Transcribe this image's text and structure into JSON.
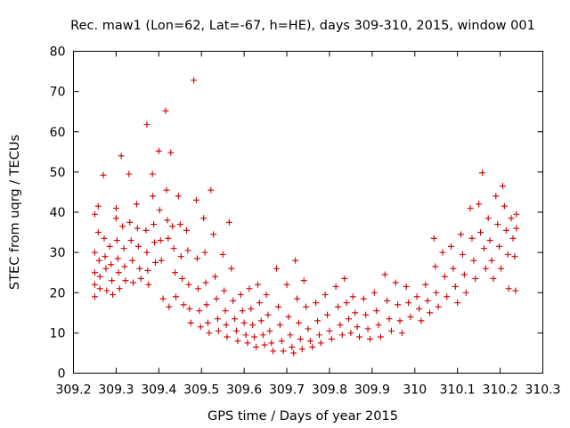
{
  "chart_data": {
    "type": "scatter",
    "title": "Rec. maw1 (Lon=62, Lat=-67, h=HE), days 309-310, 2015, window 001",
    "xlabel": "GPS time / Days of year 2015",
    "ylabel": "STEC from uqrg / TECUs",
    "xlim": [
      309.2,
      310.3
    ],
    "ylim": [
      0,
      80
    ],
    "xticks": [
      309.2,
      309.3,
      309.4,
      309.5,
      309.6,
      309.7,
      309.8,
      309.9,
      310.0,
      310.1,
      310.2,
      310.3
    ],
    "xtick_labels": [
      "309.2",
      "309.3",
      "309.4",
      "309.5",
      "309.6",
      "309.7",
      "309.8",
      "309.9",
      "310",
      "310.1",
      "310.2",
      "310.3"
    ],
    "yticks": [
      0,
      10,
      20,
      30,
      40,
      50,
      60,
      70,
      80
    ],
    "ytick_labels": [
      "0",
      "10",
      "20",
      "30",
      "40",
      "50",
      "60",
      "70",
      "80"
    ],
    "grid": false,
    "legend": false,
    "marker": "+",
    "marker_color": "#cc0000",
    "series": [
      {
        "points": [
          [
            309.25,
            39.5
          ],
          [
            309.25,
            30.0
          ],
          [
            309.25,
            25.0
          ],
          [
            309.25,
            22.0
          ],
          [
            309.25,
            19.0
          ],
          [
            309.258,
            41.5
          ],
          [
            309.258,
            35.0
          ],
          [
            309.26,
            28.0
          ],
          [
            309.262,
            24.0
          ],
          [
            309.262,
            21.0
          ],
          [
            309.27,
            49.2
          ],
          [
            309.272,
            33.5
          ],
          [
            309.274,
            29.0
          ],
          [
            309.276,
            26.0
          ],
          [
            309.278,
            20.5
          ],
          [
            309.285,
            31.5
          ],
          [
            309.288,
            27.0
          ],
          [
            309.29,
            23.0
          ],
          [
            309.292,
            19.5
          ],
          [
            309.3,
            41.0
          ],
          [
            309.3,
            38.5
          ],
          [
            309.302,
            33.0
          ],
          [
            309.304,
            28.5
          ],
          [
            309.306,
            25.0
          ],
          [
            309.308,
            21.0
          ],
          [
            309.312,
            54.0
          ],
          [
            309.315,
            36.5
          ],
          [
            309.318,
            31.0
          ],
          [
            309.32,
            26.5
          ],
          [
            309.322,
            23.0
          ],
          [
            309.33,
            49.5
          ],
          [
            309.332,
            37.5
          ],
          [
            309.335,
            33.0
          ],
          [
            309.338,
            28.0
          ],
          [
            309.34,
            22.5
          ],
          [
            309.348,
            42.0
          ],
          [
            309.35,
            36.0
          ],
          [
            309.352,
            31.5
          ],
          [
            309.355,
            26.0
          ],
          [
            309.358,
            23.5
          ],
          [
            309.372,
            61.8
          ],
          [
            309.37,
            35.5
          ],
          [
            309.372,
            30.0
          ],
          [
            309.374,
            25.5
          ],
          [
            309.376,
            22.0
          ],
          [
            309.385,
            49.5
          ],
          [
            309.386,
            44.0
          ],
          [
            309.388,
            37.0
          ],
          [
            309.39,
            32.5
          ],
          [
            309.392,
            27.5
          ],
          [
            309.4,
            55.2
          ],
          [
            309.402,
            40.5
          ],
          [
            309.404,
            33.0
          ],
          [
            309.406,
            28.0
          ],
          [
            309.41,
            18.5
          ],
          [
            309.416,
            65.2
          ],
          [
            309.418,
            45.5
          ],
          [
            309.42,
            38.0
          ],
          [
            309.422,
            33.5
          ],
          [
            309.424,
            16.5
          ],
          [
            309.428,
            54.8
          ],
          [
            309.432,
            36.5
          ],
          [
            309.435,
            31.0
          ],
          [
            309.438,
            25.0
          ],
          [
            309.44,
            19.0
          ],
          [
            309.446,
            44.0
          ],
          [
            309.45,
            37.0
          ],
          [
            309.452,
            29.0
          ],
          [
            309.455,
            23.5
          ],
          [
            309.458,
            17.0
          ],
          [
            309.465,
            35.5
          ],
          [
            309.468,
            30.5
          ],
          [
            309.47,
            22.0
          ],
          [
            309.472,
            16.0
          ],
          [
            309.475,
            12.5
          ],
          [
            309.482,
            72.8
          ],
          [
            309.488,
            43.0
          ],
          [
            309.49,
            28.5
          ],
          [
            309.492,
            21.0
          ],
          [
            309.495,
            15.5
          ],
          [
            309.498,
            11.5
          ],
          [
            309.505,
            38.5
          ],
          [
            309.508,
            30.0
          ],
          [
            309.51,
            22.5
          ],
          [
            309.512,
            17.0
          ],
          [
            309.515,
            12.5
          ],
          [
            309.518,
            10.0
          ],
          [
            309.522,
            45.5
          ],
          [
            309.528,
            34.5
          ],
          [
            309.532,
            24.0
          ],
          [
            309.535,
            18.5
          ],
          [
            309.538,
            13.5
          ],
          [
            309.54,
            10.5
          ],
          [
            309.55,
            29.5
          ],
          [
            309.553,
            20.5
          ],
          [
            309.556,
            15.5
          ],
          [
            309.558,
            12.0
          ],
          [
            309.56,
            9.0
          ],
          [
            309.565,
            37.5
          ],
          [
            309.57,
            26.0
          ],
          [
            309.574,
            18.0
          ],
          [
            309.578,
            13.5
          ],
          [
            309.582,
            10.5
          ],
          [
            309.585,
            8.0
          ],
          [
            309.592,
            19.5
          ],
          [
            309.596,
            15.5
          ],
          [
            309.6,
            12.5
          ],
          [
            309.604,
            9.5
          ],
          [
            309.608,
            7.5
          ],
          [
            309.612,
            21.0
          ],
          [
            309.616,
            16.0
          ],
          [
            309.62,
            12.0
          ],
          [
            309.624,
            9.0
          ],
          [
            309.628,
            6.5
          ],
          [
            309.632,
            22.0
          ],
          [
            309.636,
            17.5
          ],
          [
            309.64,
            13.0
          ],
          [
            309.644,
            9.5
          ],
          [
            309.648,
            7.0
          ],
          [
            309.652,
            19.5
          ],
          [
            309.656,
            14.5
          ],
          [
            309.66,
            10.5
          ],
          [
            309.664,
            7.5
          ],
          [
            309.668,
            5.5
          ],
          [
            309.676,
            26.0
          ],
          [
            309.68,
            16.5
          ],
          [
            309.684,
            12.0
          ],
          [
            309.688,
            8.0
          ],
          [
            309.692,
            5.5
          ],
          [
            309.7,
            22.0
          ],
          [
            309.704,
            14.0
          ],
          [
            309.708,
            9.5
          ],
          [
            309.712,
            6.5
          ],
          [
            309.716,
            5.0
          ],
          [
            309.72,
            28.0
          ],
          [
            309.724,
            18.5
          ],
          [
            309.728,
            12.5
          ],
          [
            309.732,
            8.5
          ],
          [
            309.736,
            6.0
          ],
          [
            309.74,
            23.0
          ],
          [
            309.745,
            16.5
          ],
          [
            309.75,
            11.0
          ],
          [
            309.755,
            8.0
          ],
          [
            309.76,
            6.5
          ],
          [
            309.768,
            17.5
          ],
          [
            309.772,
            13.0
          ],
          [
            309.776,
            9.5
          ],
          [
            309.78,
            7.5
          ],
          [
            309.79,
            19.5
          ],
          [
            309.795,
            14.5
          ],
          [
            309.8,
            10.5
          ],
          [
            309.805,
            8.5
          ],
          [
            309.815,
            21.5
          ],
          [
            309.82,
            16.5
          ],
          [
            309.825,
            12.0
          ],
          [
            309.83,
            9.5
          ],
          [
            309.835,
            23.5
          ],
          [
            309.84,
            17.5
          ],
          [
            309.845,
            13.5
          ],
          [
            309.85,
            10.0
          ],
          [
            309.855,
            19.0
          ],
          [
            309.86,
            15.0
          ],
          [
            309.865,
            11.5
          ],
          [
            309.87,
            9.0
          ],
          [
            309.88,
            18.5
          ],
          [
            309.885,
            14.5
          ],
          [
            309.89,
            11.0
          ],
          [
            309.895,
            8.5
          ],
          [
            309.905,
            20.0
          ],
          [
            309.91,
            15.5
          ],
          [
            309.915,
            12.0
          ],
          [
            309.92,
            9.0
          ],
          [
            309.93,
            24.5
          ],
          [
            309.935,
            18.0
          ],
          [
            309.94,
            13.5
          ],
          [
            309.945,
            10.5
          ],
          [
            309.955,
            22.5
          ],
          [
            309.96,
            17.0
          ],
          [
            309.965,
            13.0
          ],
          [
            309.97,
            10.0
          ],
          [
            309.98,
            21.5
          ],
          [
            309.985,
            17.5
          ],
          [
            309.99,
            14.0
          ],
          [
            310.005,
            19.0
          ],
          [
            310.01,
            16.0
          ],
          [
            310.015,
            13.0
          ],
          [
            310.025,
            22.0
          ],
          [
            310.03,
            18.0
          ],
          [
            310.035,
            15.0
          ],
          [
            310.045,
            33.5
          ],
          [
            310.048,
            26.5
          ],
          [
            310.05,
            20.0
          ],
          [
            310.055,
            16.5
          ],
          [
            310.065,
            30.0
          ],
          [
            310.07,
            24.0
          ],
          [
            310.075,
            19.0
          ],
          [
            310.085,
            31.5
          ],
          [
            310.09,
            26.0
          ],
          [
            310.095,
            21.5
          ],
          [
            310.1,
            17.5
          ],
          [
            310.108,
            34.5
          ],
          [
            310.112,
            29.5
          ],
          [
            310.116,
            24.5
          ],
          [
            310.12,
            20.0
          ],
          [
            310.13,
            41.0
          ],
          [
            310.134,
            33.5
          ],
          [
            310.138,
            28.0
          ],
          [
            310.142,
            23.5
          ],
          [
            310.15,
            42.0
          ],
          [
            310.154,
            35.0
          ],
          [
            310.158,
            49.8
          ],
          [
            310.162,
            31.0
          ],
          [
            310.166,
            26.0
          ],
          [
            310.172,
            38.5
          ],
          [
            310.176,
            33.0
          ],
          [
            310.18,
            28.0
          ],
          [
            310.184,
            23.5
          ],
          [
            310.19,
            44.0
          ],
          [
            310.194,
            37.0
          ],
          [
            310.198,
            31.5
          ],
          [
            310.202,
            26.0
          ],
          [
            310.206,
            46.5
          ],
          [
            310.21,
            41.5
          ],
          [
            310.214,
            35.5
          ],
          [
            310.218,
            29.5
          ],
          [
            310.22,
            21.0
          ],
          [
            310.226,
            38.5
          ],
          [
            310.23,
            33.5
          ],
          [
            310.234,
            29.0
          ],
          [
            310.236,
            20.5
          ],
          [
            310.238,
            39.5
          ],
          [
            310.238,
            36.0
          ]
        ]
      }
    ]
  }
}
